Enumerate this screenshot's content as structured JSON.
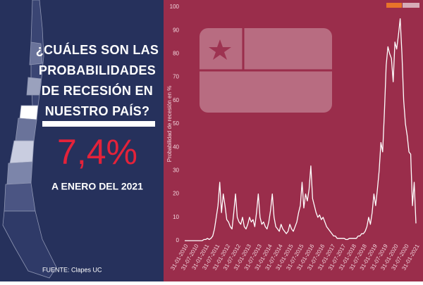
{
  "panel": {
    "question": [
      "¿CUÁLES SON LAS",
      "PROBABILIDADES",
      "DE RECESIÓN EN",
      "NUESTRO PAÍS?"
    ],
    "value": "7,4%",
    "period": "A ENERO DEL 2021",
    "source": "FUENTE: Clapes UC"
  },
  "chart_data": {
    "type": "line",
    "y_label": "Probabilidad de recesión en %",
    "color": "#ffffff",
    "ylim": [
      0,
      100
    ],
    "yticks": [
      0,
      10,
      20,
      30,
      40,
      50,
      60,
      70,
      80,
      90,
      100
    ],
    "categories": [
      "31-01-2010",
      null,
      null,
      null,
      null,
      null,
      "31-07-2010",
      null,
      null,
      null,
      null,
      null,
      "31-01-2011",
      null,
      null,
      null,
      null,
      null,
      "31-07-2011",
      null,
      null,
      null,
      null,
      null,
      "31-01-2012",
      null,
      null,
      null,
      null,
      null,
      "31-07-2012",
      null,
      null,
      null,
      null,
      null,
      "31-01-2013",
      null,
      null,
      null,
      null,
      null,
      "31-07-2013",
      null,
      null,
      null,
      null,
      null,
      "31-01-2014",
      null,
      null,
      null,
      null,
      null,
      "31-07-2014",
      null,
      null,
      null,
      null,
      null,
      "31-01-2015",
      null,
      null,
      null,
      null,
      null,
      "31-07-2015",
      null,
      null,
      null,
      null,
      null,
      "31-01-2016",
      null,
      null,
      null,
      null,
      null,
      "31-07-2016",
      null,
      null,
      null,
      null,
      null,
      "31-01-2017",
      null,
      null,
      null,
      null,
      null,
      "31-07-2017",
      null,
      null,
      null,
      null,
      null,
      "31-01-2018",
      null,
      null,
      null,
      null,
      null,
      "31-07-2018",
      null,
      null,
      null,
      null,
      null,
      "31-01-2019",
      null,
      null,
      null,
      null,
      null,
      "31-07-2019",
      null,
      null,
      null,
      null,
      null,
      "31-01-2020",
      null,
      null,
      null,
      null,
      null,
      "31-07-2020",
      null,
      null,
      null,
      null,
      null,
      "31-01-2021"
    ],
    "values": [
      0,
      0,
      0,
      0,
      0,
      0,
      0,
      0,
      0,
      0,
      0,
      0.5,
      0.5,
      1,
      0.5,
      1,
      2,
      5,
      10,
      15,
      25,
      12,
      20,
      15,
      9,
      8,
      6,
      5,
      12,
      20,
      10,
      8,
      7,
      10,
      6,
      5,
      7,
      10,
      8,
      9,
      6,
      12,
      20,
      10,
      7,
      8,
      6,
      5,
      8,
      13,
      20,
      10,
      6,
      5,
      4,
      7,
      5,
      4,
      3,
      4,
      7,
      5,
      4,
      6,
      8,
      12,
      15,
      25,
      14,
      20,
      17,
      22,
      32,
      18,
      15,
      12,
      10,
      11,
      9,
      10,
      8,
      6,
      5,
      4,
      3,
      2,
      2,
      1,
      1,
      1,
      1,
      1,
      0.5,
      0.5,
      1,
      1,
      1,
      1,
      1,
      2,
      2,
      3,
      3,
      4,
      6,
      10,
      7,
      12,
      20,
      15,
      22,
      30,
      42,
      38,
      55,
      75,
      83,
      80,
      78,
      68,
      85,
      82,
      88,
      95,
      80,
      60,
      50,
      45,
      38,
      37,
      15,
      25,
      7.4
    ]
  }
}
